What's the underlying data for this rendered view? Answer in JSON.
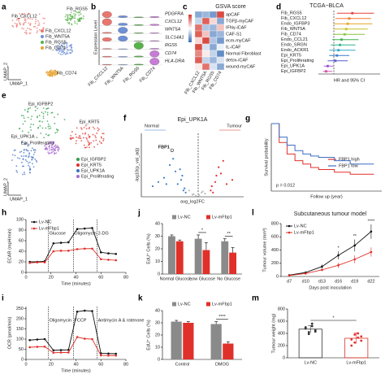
{
  "chart_data": [
    {
      "panel": "a",
      "type": "umap",
      "xlabel": "UMAP_1",
      "ylabel": "UMAP_2",
      "clusters": [
        {
          "name": "Fib_CXCL12",
          "color": "#e8766f"
        },
        {
          "name": "Fib_WNT5A",
          "color": "#6f8fd6"
        },
        {
          "name": "Fib_RGS5",
          "color": "#58b24a"
        },
        {
          "name": "Fib_CD74",
          "color": "#e5a332"
        }
      ]
    },
    {
      "panel": "b",
      "type": "violin",
      "ylabel": "Expression Level",
      "genes": [
        "PDGFRA",
        "CXCL12",
        "WNT5A",
        "SLC14A1",
        "RGS5",
        "CD74",
        "HLA-DRA"
      ],
      "categories": [
        "Fib_CXCL12",
        "Fib_WNT5A",
        "Fib_RGS5",
        "Fib_CD74"
      ],
      "colors": [
        "#e8766f",
        "#6f8fd6",
        "#58b24a",
        "#c77cd6"
      ],
      "ylim": [
        0,
        3
      ],
      "values": [
        [
          2.5,
          0.8,
          0.3,
          0.5
        ],
        [
          2.8,
          1.0,
          0.4,
          0.6
        ],
        [
          0.5,
          2.5,
          0.3,
          0.3
        ],
        [
          1.5,
          2.2,
          0.2,
          0.3
        ],
        [
          0.3,
          0.2,
          2.8,
          0.4
        ],
        [
          0.4,
          0.3,
          0.5,
          2.6
        ],
        [
          0.3,
          0.2,
          0.4,
          2.8
        ]
      ]
    },
    {
      "panel": "c",
      "type": "heatmap",
      "title": "GSVA score",
      "rows": [
        "apCAF",
        "TGFβ-myCAF",
        "IFNγ-iCAF",
        "CAF-S1",
        "ecm-myCAF",
        "IL-iCAF",
        "Normal Fibroblast",
        "detox-iCAF",
        "wound-myCAF"
      ],
      "columns": [
        "Fib_CXCL12",
        "Fib_WNT5A",
        "Fib_RGS5",
        "Fib_CD74"
      ],
      "zlim": [
        -1,
        1
      ],
      "colors": [
        "#3b6fb6",
        "#ffffff",
        "#d6382e"
      ],
      "values": [
        [
          -0.6,
          -0.5,
          -0.7,
          0.9
        ],
        [
          -0.3,
          0.8,
          0.2,
          -0.6
        ],
        [
          0.7,
          -0.4,
          -0.5,
          0.3
        ],
        [
          0.8,
          0.3,
          -0.6,
          -0.5
        ],
        [
          0.2,
          0.9,
          -0.4,
          -0.7
        ],
        [
          0.9,
          -0.2,
          -0.6,
          -0.1
        ],
        [
          0.6,
          0.1,
          -0.3,
          -0.8
        ],
        [
          0.8,
          -0.3,
          -0.5,
          -0.2
        ],
        [
          0.1,
          0.7,
          -0.2,
          -0.6
        ]
      ]
    },
    {
      "panel": "d",
      "type": "forest",
      "title": "TCGA−BLCA",
      "xlabel": "HR and 95% CI",
      "categories": [
        "Fib_RGS5",
        "Fib_CXCL12",
        "Endo_IGFBP3",
        "Fib_WNT5A",
        "Fib_CD74",
        "Endo_CCL21",
        "Endo_SRGN",
        "Endo_ACKR1",
        "Epi_KRT5",
        "Epi_Proliferating",
        "Epi_UPK1A",
        "Epi_IGFBP2"
      ],
      "hr": [
        2.2,
        2.0,
        1.9,
        1.8,
        1.7,
        1.5,
        1.4,
        1.3,
        1.2,
        1.1,
        0.6,
        0.5
      ],
      "lower": [
        1.2,
        1.1,
        1.0,
        1.0,
        1.0,
        0.9,
        0.8,
        0.7,
        0.7,
        0.6,
        0.35,
        0.3
      ],
      "upper": [
        3.6,
        3.4,
        3.5,
        3.2,
        3.0,
        2.6,
        2.4,
        2.4,
        2.0,
        1.9,
        1.0,
        0.9
      ],
      "colors": [
        "#e6413a",
        "#f07a2a",
        "#e9a227",
        "#c9c22a",
        "#8cc63f",
        "#3fb24a",
        "#2fb38c",
        "#2aa9c9",
        "#3b7fd1",
        "#5b5bd1",
        "#9b4fd1",
        "#d14fa8"
      ],
      "xlim": [
        0,
        4
      ],
      "reference": 1
    },
    {
      "panel": "e",
      "type": "umap",
      "xlabel": "UMAP_1",
      "ylabel": "UMAP_2",
      "clusters": [
        {
          "name": "Epi_IGFBP2",
          "color": "#2e9e4a"
        },
        {
          "name": "Epi_KRT5",
          "color": "#e0302a"
        },
        {
          "name": "Epi_UPK1A",
          "color": "#3d6fc4"
        },
        {
          "name": "Epi_Proliferating",
          "color": "#a86bd1"
        }
      ]
    },
    {
      "panel": "f",
      "type": "volcano",
      "title": "Epi_UPK1A",
      "xlabel": "avg_log2FC",
      "ylabel": "-log10(p_val_adj)",
      "left_label": "Normal",
      "right_label": "Tumour",
      "highlight": {
        "label": "FBP1",
        "x": -2.3,
        "y": 220
      },
      "xlim": [
        -5,
        4
      ],
      "ylim": [
        0,
        300
      ],
      "groups": [
        {
          "color": "#3d7fc9",
          "x": [
            -1.2,
            -1.5,
            -2,
            -2.5,
            -3,
            -1.8,
            -1.1,
            -3.5,
            -2.2,
            -1.4,
            -4,
            -1.6,
            -2.8,
            -1.3
          ],
          "y": [
            40,
            80,
            120,
            150,
            90,
            60,
            20,
            70,
            180,
            100,
            50,
            130,
            60,
            30
          ]
        },
        {
          "color": "#e0302a",
          "x": [
            1.1,
            1.5,
            2,
            2.5,
            1.3,
            1.8,
            3,
            1.2,
            2.2,
            1.6
          ],
          "y": [
            30,
            70,
            110,
            60,
            20,
            140,
            80,
            50,
            170,
            100
          ]
        },
        {
          "color": "#bbbbbb",
          "x": [
            -0.5,
            0.3,
            -0.2,
            0.6,
            -0.8,
            0.1,
            0.4,
            -0.4
          ],
          "y": [
            10,
            20,
            5,
            15,
            30,
            8,
            25,
            12
          ]
        }
      ]
    },
    {
      "panel": "g",
      "type": "survival",
      "xlabel": "Follow up (year)",
      "ylabel": "Survival probability",
      "annotation": "p = 0.012",
      "xlim": [
        0,
        14
      ],
      "ylim": [
        0,
        1
      ],
      "series": [
        {
          "name": "FBP1 high",
          "color": "#e0302a",
          "x": [
            0,
            1,
            2,
            3,
            4,
            5,
            6,
            8,
            10,
            13
          ],
          "y": [
            1,
            0.72,
            0.55,
            0.45,
            0.4,
            0.35,
            0.32,
            0.28,
            0.25,
            0.25
          ]
        },
        {
          "name": "FBP1 low",
          "color": "#3d6fc4",
          "x": [
            0,
            1,
            2,
            3,
            4,
            5,
            6,
            8,
            10,
            13
          ],
          "y": [
            1,
            0.8,
            0.68,
            0.6,
            0.55,
            0.52,
            0.5,
            0.45,
            0.4,
            0.4
          ]
        }
      ]
    },
    {
      "panel": "h",
      "type": "line",
      "xlabel": "Time (minutes)",
      "ylabel": "ECAR (mpH/min)",
      "x": [
        3,
        9,
        15,
        22,
        28,
        34,
        41,
        47,
        53,
        60,
        66,
        72
      ],
      "xlim": [
        0,
        80
      ],
      "xticks": [
        0,
        20,
        40,
        60,
        80
      ],
      "ylim": [
        0,
        100
      ],
      "yticks": [
        0,
        20,
        40,
        60,
        80,
        100
      ],
      "annotations": [
        {
          "label": "Glucose",
          "x": 18
        },
        {
          "label": "Oligomycin",
          "x": 38
        },
        {
          "label": "2-DG",
          "x": 57
        }
      ],
      "series": [
        {
          "name": "Lv-NC",
          "color": "#111111",
          "values": [
            20,
            20,
            21,
            55,
            56,
            57,
            82,
            83,
            84,
            38,
            36,
            35
          ]
        },
        {
          "name": "Lv-mFbp1",
          "color": "#e0302a",
          "values": [
            18,
            19,
            19,
            40,
            41,
            41,
            44,
            45,
            45,
            25,
            24,
            23
          ]
        }
      ]
    },
    {
      "panel": "i",
      "type": "line",
      "xlabel": "Time (minutes)",
      "ylabel": "OCR (pmol/min)",
      "x": [
        3,
        9,
        15,
        22,
        28,
        34,
        41,
        47,
        53,
        60,
        66,
        72
      ],
      "xlim": [
        0,
        80
      ],
      "xticks": [
        0,
        20,
        40,
        60,
        80
      ],
      "ylim": [
        0,
        260
      ],
      "yticks": [
        0,
        50,
        100,
        150,
        200,
        250
      ],
      "annotations": [
        {
          "label": "Oligomycin",
          "x": 18
        },
        {
          "label": "FCCP",
          "x": 38
        },
        {
          "label": "Antimycin A & rotenone",
          "x": 57
        }
      ],
      "series": [
        {
          "color": "#111111",
          "values": [
            95,
            98,
            100,
            45,
            46,
            47,
            235,
            240,
            238,
            30,
            29,
            28
          ]
        },
        {
          "color": "#e0302a",
          "values": [
            60,
            62,
            63,
            33,
            34,
            34,
            110,
            102,
            100,
            20,
            19,
            19
          ]
        }
      ]
    },
    {
      "panel": "j",
      "type": "bar",
      "ylabel": "EdU⁺ Cells (%)",
      "categories": [
        "Normal Glucose",
        "Low Glucose",
        "No Glucose"
      ],
      "ylim": [
        0,
        40
      ],
      "yticks": [
        0,
        10,
        20,
        30,
        40
      ],
      "series": [
        {
          "name": "Lv-NC",
          "color": "#8a8a8a",
          "values": [
            30,
            28,
            26
          ],
          "errors": [
            1,
            3,
            2
          ]
        },
        {
          "name": "Lv-mFbp1",
          "color": "#e0302a",
          "values": [
            26,
            19,
            17
          ],
          "errors": [
            1,
            6,
            4
          ]
        }
      ],
      "significance": [
        null,
        "*",
        "**"
      ]
    },
    {
      "panel": "k",
      "type": "bar",
      "ylabel": "EdU⁺ Cells (%)",
      "categories": [
        "Control",
        "DMOG"
      ],
      "ylim": [
        0,
        40
      ],
      "yticks": [
        0,
        10,
        20,
        30,
        40
      ],
      "series": [
        {
          "name": "Lv-NC",
          "color": "#8a8a8a",
          "values": [
            31,
            29
          ],
          "errors": [
            1,
            2
          ]
        },
        {
          "name": "Lv-mFbp1",
          "color": "#e0302a",
          "values": [
            30,
            13
          ],
          "errors": [
            1,
            1.5
          ]
        }
      ],
      "significance": [
        null,
        "****"
      ]
    },
    {
      "panel": "l",
      "type": "line",
      "title": "Subcutaneous tumour model",
      "xlabel": "Days post inoculation",
      "ylabel": "Tumour volume (mm³)",
      "categories": [
        "d7",
        "d10",
        "d13",
        "d16",
        "d19",
        "d22"
      ],
      "ylim": [
        0,
        800
      ],
      "yticks": [
        0,
        200,
        400,
        600,
        800
      ],
      "series": [
        {
          "name": "Lv-NC",
          "color": "#111111",
          "values": [
            20,
            60,
            150,
            320,
            470,
            680
          ],
          "errors": [
            5,
            15,
            30,
            60,
            90,
            110
          ]
        },
        {
          "name": "Lv-mFbp1",
          "color": "#e0302a",
          "values": [
            15,
            45,
            100,
            170,
            260,
            370
          ],
          "errors": [
            5,
            10,
            20,
            40,
            60,
            70
          ]
        }
      ],
      "significance": [
        null,
        null,
        null,
        "*",
        "**",
        "****"
      ]
    },
    {
      "panel": "m",
      "type": "dot",
      "ylabel": "Tumour weight (mg)",
      "categories": [
        "Lv-NC",
        "Lv-mFbp1"
      ],
      "colors": [
        "#333333",
        "#e0302a"
      ],
      "ylim": [
        0,
        800
      ],
      "yticks": [
        0,
        200,
        400,
        600,
        800
      ],
      "values": [
        470,
        320
      ],
      "errors": [
        60,
        90
      ],
      "points": [
        [
          500,
          420,
          560,
          450,
          480,
          390,
          520,
          430
        ],
        [
          300,
          250,
          400,
          350,
          200,
          380,
          330,
          280
        ]
      ],
      "significance": "*"
    }
  ]
}
